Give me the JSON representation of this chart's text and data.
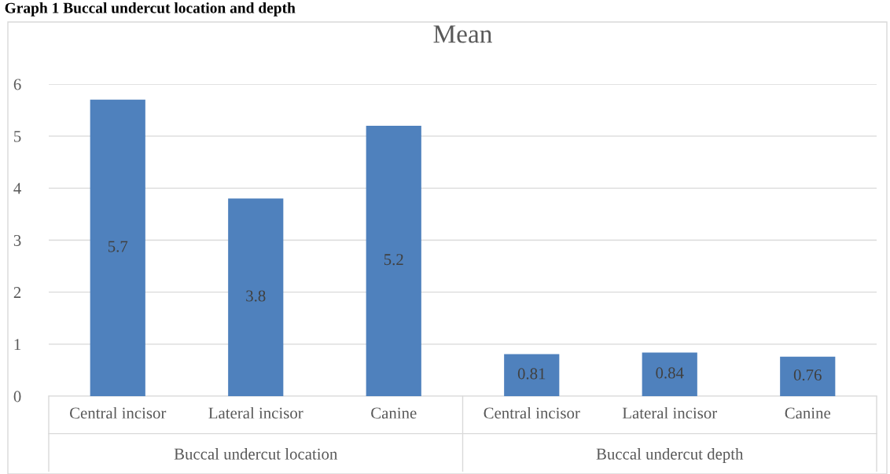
{
  "chart_data": {
    "type": "bar",
    "title": "Mean",
    "categories": [
      "Central incisor",
      "Lateral incisor",
      "Canine",
      "Central incisor",
      "Lateral incisor",
      "Canine"
    ],
    "values": [
      5.7,
      3.8,
      5.2,
      0.81,
      0.84,
      0.76
    ],
    "color": "#4f81bd",
    "ylim": [
      0,
      6
    ],
    "yticks": [
      0,
      1,
      2,
      3,
      4,
      5,
      6
    ],
    "grid": "y",
    "data_labels": true,
    "annotations": [
      "Graph 1 Buccal undercut location and depth",
      "Buccal undercut location",
      "Buccal undercut depth"
    ]
  }
}
